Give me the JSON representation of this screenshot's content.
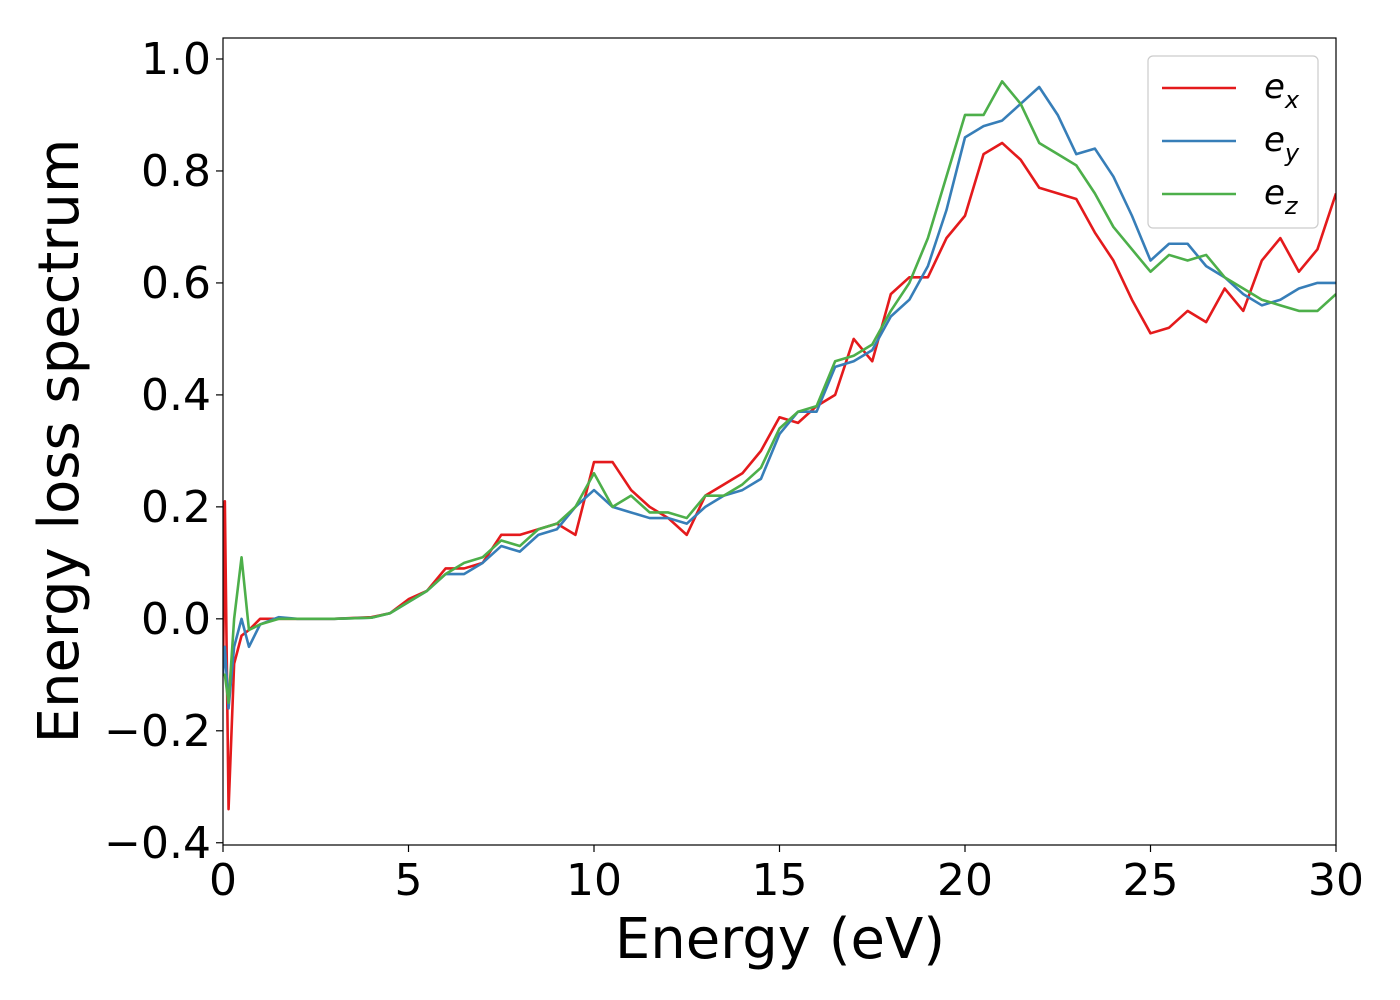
{
  "chart_data": {
    "type": "line",
    "xlabel": "Energy (eV)",
    "ylabel": "Energy loss spectrum",
    "x": [
      0,
      0.05,
      0.15,
      0.3,
      0.5,
      0.7,
      1,
      1.5,
      2,
      3,
      4,
      4.5,
      5,
      5.5,
      6,
      6.5,
      7,
      7.5,
      8,
      8.5,
      9,
      9.5,
      10,
      10.5,
      11,
      11.5,
      12,
      12.5,
      13,
      13.5,
      14,
      14.5,
      15,
      15.5,
      16,
      16.5,
      17,
      17.5,
      18,
      18.5,
      19,
      19.5,
      20,
      20.5,
      21,
      21.5,
      22,
      22.5,
      23,
      23.5,
      24,
      24.5,
      25,
      25.5,
      26,
      26.5,
      27,
      27.5,
      28,
      28.5,
      29,
      29.5,
      30
    ],
    "series": [
      {
        "name": "ex",
        "color": "#e41a1c",
        "values": [
          -0.1,
          0.21,
          -0.34,
          -0.08,
          -0.03,
          -0.02,
          0,
          0,
          0,
          0,
          0.003,
          0.01,
          0.035,
          0.05,
          0.09,
          0.09,
          0.1,
          0.15,
          0.15,
          0.16,
          0.17,
          0.15,
          0.28,
          0.28,
          0.23,
          0.2,
          0.18,
          0.15,
          0.22,
          0.24,
          0.26,
          0.3,
          0.36,
          0.35,
          0.38,
          0.4,
          0.5,
          0.46,
          0.58,
          0.61,
          0.61,
          0.68,
          0.72,
          0.83,
          0.85,
          0.82,
          0.77,
          0.76,
          0.75,
          0.69,
          0.64,
          0.57,
          0.51,
          0.52,
          0.55,
          0.53,
          0.59,
          0.55,
          0.64,
          0.68,
          0.62,
          0.66,
          0.76
        ]
      },
      {
        "name": "ey",
        "color": "#377eb8",
        "values": [
          -0.1,
          -0.05,
          -0.16,
          -0.05,
          0.0,
          -0.05,
          -0.01,
          0.003,
          0,
          0,
          0.002,
          0.01,
          0.03,
          0.05,
          0.08,
          0.08,
          0.1,
          0.13,
          0.12,
          0.15,
          0.16,
          0.2,
          0.23,
          0.2,
          0.19,
          0.18,
          0.18,
          0.17,
          0.2,
          0.22,
          0.23,
          0.25,
          0.33,
          0.37,
          0.37,
          0.45,
          0.46,
          0.48,
          0.54,
          0.57,
          0.63,
          0.73,
          0.86,
          0.88,
          0.89,
          0.92,
          0.95,
          0.9,
          0.83,
          0.84,
          0.79,
          0.72,
          0.64,
          0.67,
          0.67,
          0.63,
          0.61,
          0.58,
          0.56,
          0.57,
          0.59,
          0.6,
          0.6
        ]
      },
      {
        "name": "ez",
        "color": "#4daf4a",
        "values": [
          -0.1,
          -0.1,
          -0.15,
          0.0,
          0.11,
          -0.02,
          -0.01,
          0,
          0,
          0,
          0.002,
          0.01,
          0.03,
          0.05,
          0.08,
          0.1,
          0.11,
          0.14,
          0.13,
          0.16,
          0.17,
          0.2,
          0.26,
          0.2,
          0.22,
          0.19,
          0.19,
          0.18,
          0.22,
          0.22,
          0.24,
          0.27,
          0.34,
          0.37,
          0.38,
          0.46,
          0.47,
          0.49,
          0.55,
          0.6,
          0.68,
          0.79,
          0.9,
          0.9,
          0.96,
          0.92,
          0.85,
          0.83,
          0.81,
          0.76,
          0.7,
          0.66,
          0.62,
          0.65,
          0.64,
          0.65,
          0.61,
          0.59,
          0.57,
          0.56,
          0.55,
          0.55,
          0.58
        ]
      }
    ],
    "xlim": [
      0,
      30
    ],
    "xticks": [
      0,
      5,
      10,
      15,
      20,
      25,
      30
    ],
    "ylim": [
      -0.404,
      1.0375
    ],
    "yticks": [
      {
        "value": -0.4,
        "label": "−0.4"
      },
      {
        "value": -0.2,
        "label": "−0.2"
      },
      {
        "value": 0,
        "label": "0.0"
      },
      {
        "value": 0.2,
        "label": "0.2"
      },
      {
        "value": 0.4,
        "label": "0.4"
      },
      {
        "value": 0.6,
        "label": "0.6"
      },
      {
        "value": 0.8,
        "label": "0.8"
      },
      {
        "value": 1.0,
        "label": "1.0"
      }
    ],
    "grid": false,
    "legend": "upper right"
  }
}
